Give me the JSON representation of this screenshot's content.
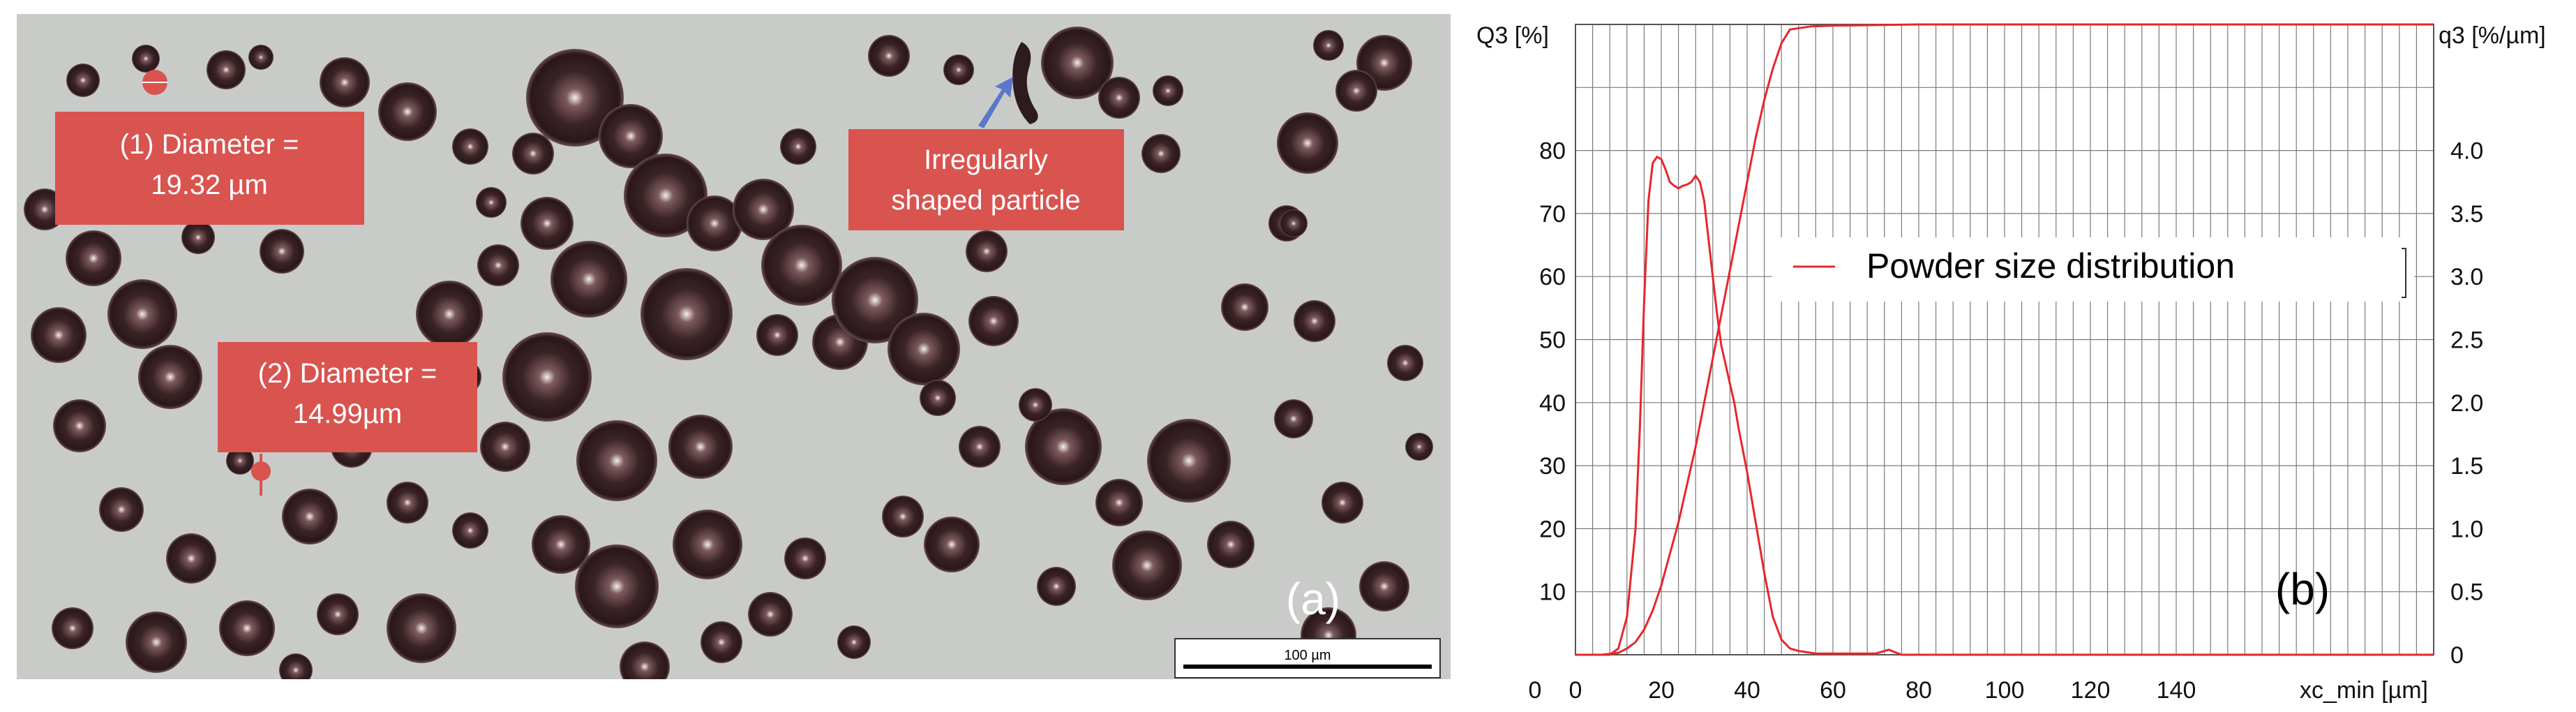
{
  "micrograph": {
    "panel_label": "(a)",
    "annotation_1_line1": "(1) Diameter =",
    "annotation_1_line2": "19.32 µm",
    "annotation_2_line1": "(2) Diameter =",
    "annotation_2_line2": "14.99µm",
    "annotation_3_line1": "Irregularly",
    "annotation_3_line2": "shaped particle",
    "scale_bar_label": "100 µm",
    "colors": {
      "background": "#c9cbc8",
      "callout": "#d9534f",
      "particle": "#3a2326"
    }
  },
  "chart_data": {
    "type": "line",
    "panel_label": "(b)",
    "xlabel": "xc_min [µm]",
    "ylabel_left": "Q3 [%]",
    "ylabel_right": "q3 [%/µm]",
    "xlim": [
      0,
      200
    ],
    "ylim_left": [
      0,
      100
    ],
    "ylim_right": [
      0,
      5
    ],
    "x_ticks": [
      0,
      20,
      40,
      60,
      80,
      100,
      120,
      140
    ],
    "y_ticks_left": [
      10,
      20,
      30,
      40,
      50,
      60,
      70,
      80
    ],
    "y_ticks_right": [
      0,
      0.5,
      1.0,
      1.5,
      2.0,
      2.5,
      3.0,
      3.5,
      4.0
    ],
    "y_ticks_right_labels": [
      "0",
      "0.5",
      "1.0",
      "1.5",
      "2.0",
      "2.5",
      "3.0",
      "3.5",
      "4.0"
    ],
    "legend": {
      "entry": "Powder size distribution",
      "placement": "right"
    },
    "grid": true,
    "color": "#e8262b",
    "series": [
      {
        "axis": "left",
        "x": [
          0,
          6,
          10,
          12,
          14,
          16,
          18,
          20,
          22,
          24,
          26,
          28,
          30,
          32,
          34,
          36,
          38,
          40,
          42,
          44,
          46,
          48,
          50,
          55,
          60,
          70,
          80,
          100,
          150,
          200
        ],
        "y": [
          0,
          0,
          0.3,
          1,
          2,
          4,
          7,
          11,
          16,
          21,
          27,
          33,
          40,
          47,
          54,
          61,
          68,
          75,
          82,
          88,
          93,
          97,
          99.2,
          99.7,
          99.8,
          99.9,
          100,
          100,
          100,
          100
        ]
      },
      {
        "axis": "right",
        "x": [
          0,
          8,
          10,
          12,
          14,
          15,
          16,
          17,
          18,
          19,
          20,
          21,
          22,
          23,
          24,
          25,
          26,
          27,
          28,
          29,
          30,
          31,
          32,
          33,
          34,
          35,
          36,
          37,
          38,
          40,
          42,
          44,
          46,
          48,
          50,
          52,
          54,
          56,
          60,
          70,
          73,
          76,
          80,
          100,
          150,
          200
        ],
        "y": [
          0,
          0,
          0.05,
          0.3,
          1.0,
          1.8,
          2.8,
          3.6,
          3.9,
          3.95,
          3.93,
          3.85,
          3.75,
          3.72,
          3.7,
          3.72,
          3.73,
          3.75,
          3.8,
          3.75,
          3.6,
          3.3,
          3.0,
          2.7,
          2.45,
          2.3,
          2.15,
          2.0,
          1.8,
          1.45,
          1.05,
          0.65,
          0.3,
          0.12,
          0.05,
          0.03,
          0.02,
          0.01,
          0.01,
          0.01,
          0.04,
          0,
          0,
          0,
          0,
          0
        ]
      }
    ]
  }
}
